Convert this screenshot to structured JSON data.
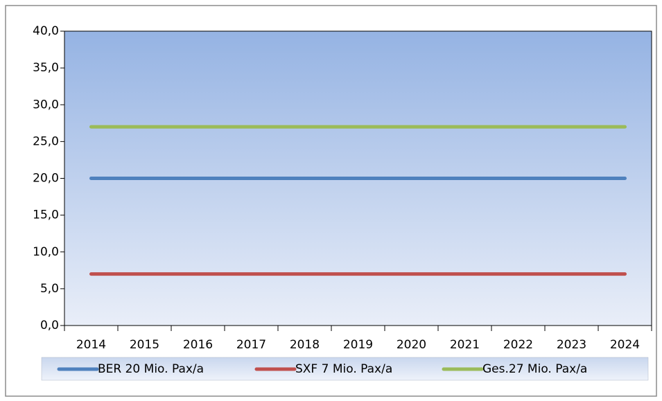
{
  "chart_data": {
    "type": "line",
    "categories": [
      "2014",
      "2015",
      "2016",
      "2017",
      "2018",
      "2019",
      "2020",
      "2021",
      "2022",
      "2023",
      "2024"
    ],
    "series": [
      {
        "name": "BER 20 Mio. Pax/a",
        "color": "#4f81bd",
        "values": [
          20,
          20,
          20,
          20,
          20,
          20,
          20,
          20,
          20,
          20,
          20
        ]
      },
      {
        "name": "SXF 7 Mio. Pax/a",
        "color": "#c0504d",
        "values": [
          7,
          7,
          7,
          7,
          7,
          7,
          7,
          7,
          7,
          7,
          7
        ]
      },
      {
        "name": "Ges.27 Mio. Pax/a",
        "color": "#9bbb59",
        "values": [
          27,
          27,
          27,
          27,
          27,
          27,
          27,
          27,
          27,
          27,
          27
        ]
      }
    ],
    "ylim": [
      0,
      40
    ],
    "yticks": [
      {
        "value": 0,
        "label": "0,0"
      },
      {
        "value": 5,
        "label": "5,0"
      },
      {
        "value": 10,
        "label": "10,0"
      },
      {
        "value": 15,
        "label": "15,0"
      },
      {
        "value": 20,
        "label": "20,0"
      },
      {
        "value": 25,
        "label": "25,0"
      },
      {
        "value": 30,
        "label": "30,0"
      },
      {
        "value": 35,
        "label": "35,0"
      },
      {
        "value": 40,
        "label": "40,0"
      }
    ],
    "legend": "bottom"
  }
}
